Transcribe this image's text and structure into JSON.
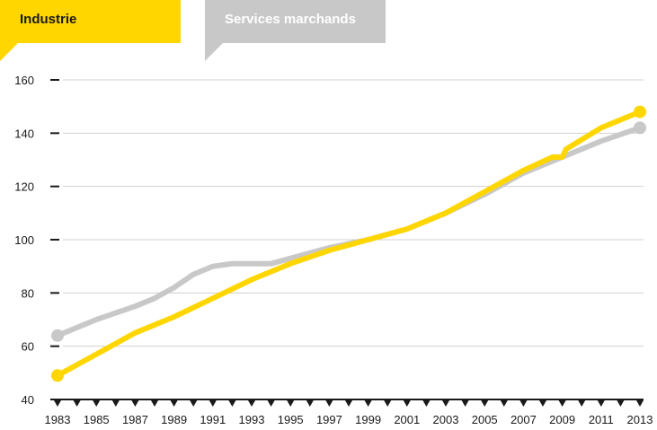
{
  "legend": {
    "industrie": "Industrie",
    "services": "Services marchands"
  },
  "colors": {
    "industrie": "#ffd600",
    "services": "#c8c8c8",
    "axis": "#1a1a1a",
    "grid": "#d0d0d0"
  },
  "chart_data": {
    "type": "line",
    "title": "",
    "xlabel": "",
    "ylabel": "",
    "ylim": [
      40,
      160
    ],
    "xlim": [
      1983,
      2013
    ],
    "yticks": [
      40,
      60,
      80,
      100,
      120,
      140,
      160
    ],
    "xticks": [
      1983,
      1985,
      1987,
      1989,
      1991,
      1993,
      1995,
      1997,
      1999,
      2001,
      2003,
      2005,
      2007,
      2009,
      2011,
      2013
    ],
    "grid": true,
    "series": [
      {
        "name": "Services marchands",
        "color": "#c8c8c8",
        "x": [
          1983,
          1985,
          1987,
          1988,
          1989,
          1990,
          1991,
          1992,
          1993,
          1994,
          1995,
          1997,
          1999,
          2001,
          2003,
          2005,
          2007,
          2009,
          2011,
          2013
        ],
        "y": [
          64,
          70,
          75,
          78,
          82,
          87,
          90,
          91,
          91,
          91,
          93,
          97,
          100,
          104,
          110,
          117,
          125,
          131,
          137,
          142
        ]
      },
      {
        "name": "Industrie",
        "color": "#ffd600",
        "x": [
          1983,
          1985,
          1987,
          1989,
          1991,
          1993,
          1995,
          1997,
          1999,
          2001,
          2003,
          2005,
          2007,
          2008.5,
          2009,
          2009.2,
          2011,
          2013
        ],
        "y": [
          49,
          57,
          65,
          71,
          78,
          85,
          91,
          96,
          100,
          104,
          110,
          118,
          126,
          131,
          131,
          134,
          142,
          148
        ]
      }
    ]
  }
}
